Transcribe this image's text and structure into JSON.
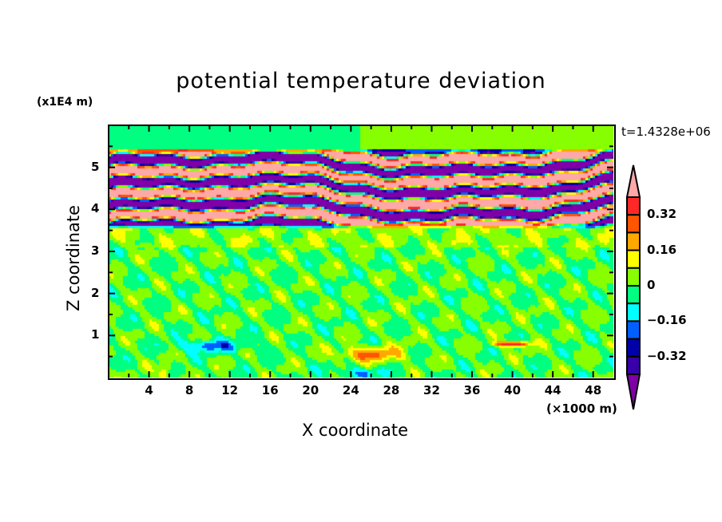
{
  "chart_data": {
    "type": "heatmap",
    "title": "potential temperature deviation",
    "xlabel": "X coordinate",
    "ylabel": "Z coordinate",
    "x_unit": "(×1000 m)",
    "y_unit": "(x1E4 m)",
    "time_label": "t=1.4328e+06",
    "xlim": [
      0,
      50
    ],
    "ylim": [
      0,
      6
    ],
    "xticks": [
      "4",
      "8",
      "12",
      "16",
      "20",
      "24",
      "28",
      "32",
      "36",
      "40",
      "44",
      "48"
    ],
    "xtick_values": [
      4,
      8,
      12,
      16,
      20,
      24,
      28,
      32,
      36,
      40,
      44,
      48
    ],
    "yticks": [
      "1",
      "2",
      "3",
      "4",
      "5"
    ],
    "ytick_values": [
      1,
      2,
      3,
      4,
      5
    ],
    "colorbar": {
      "levels": [
        0.4,
        0.32,
        0.24,
        0.16,
        0.08,
        0,
        -0.08,
        -0.16,
        -0.24,
        -0.32,
        -0.4
      ],
      "labels": [
        "0.32",
        "0.16",
        "0",
        "−0.16",
        "−0.32"
      ],
      "label_values": [
        0.32,
        0.16,
        0,
        -0.16,
        -0.32
      ],
      "over_color": "#ffa8a8",
      "under_color": "#8000a8",
      "colors": [
        "#ff2828",
        "#ff5500",
        "#ffa800",
        "#ffff00",
        "#88ff00",
        "#00ff80",
        "#00ffff",
        "#0060ff",
        "#0000a8",
        "#3800a8"
      ]
    },
    "features": "strong alternating positive/negative layers between z=3.6 and z=5.4; weak near-zero field below and above"
  }
}
